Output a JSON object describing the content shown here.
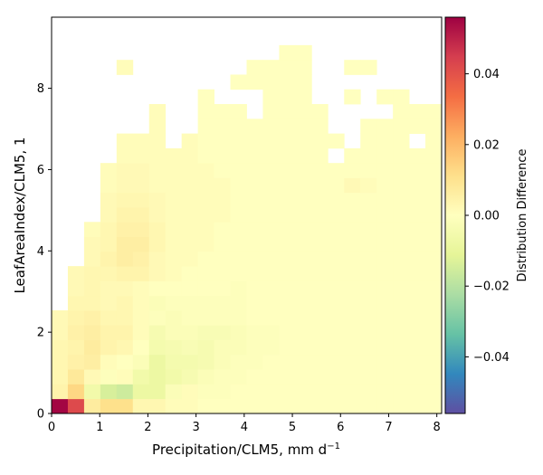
{
  "chart_data": {
    "type": "heatmap",
    "title": "",
    "xlabel": "Precipitation/CLM5,  mm d",
    "xlabel_superscript": "−1",
    "ylabel": "LeafAreaIndex/CLM5,  1",
    "xlim": [
      0,
      8.1
    ],
    "ylim": [
      0,
      9.75
    ],
    "x_bin_width": 0.3375,
    "y_bin_width": 0.3625,
    "n_x_bins": 24,
    "n_y_bins": 27,
    "x_ticks": [
      0,
      1,
      2,
      3,
      4,
      5,
      6,
      7,
      8
    ],
    "y_ticks": [
      0,
      2,
      4,
      6,
      8
    ],
    "colorbar": {
      "label": "Distribution Difference",
      "range": [
        -0.056,
        0.056
      ],
      "ticks": [
        -0.04,
        -0.02,
        0.0,
        0.02,
        0.04
      ],
      "tick_labels": [
        "−0.04",
        "−0.02",
        "0.00",
        "0.02",
        "0.04"
      ],
      "colormap": "Spectral_r",
      "colormap_colors": [
        "#5e4fa2",
        "#3288bd",
        "#66c2a5",
        "#abdda4",
        "#e6f598",
        "#ffffbf",
        "#fee08b",
        "#fdae61",
        "#f46d43",
        "#d53e4f",
        "#9e0142"
      ]
    },
    "top_edge_bins": [
      0,
      0,
      0,
      0,
      0,
      0,
      0,
      0,
      0,
      0,
      0,
      0,
      0,
      0,
      0,
      0,
      0,
      0,
      0,
      0,
      0,
      0,
      0,
      0
    ],
    "cell_rows": [
      {
        "y_bin": 0,
        "values": [
          0.055,
          0.042,
          0.007,
          0.011,
          0.011,
          0.003,
          0.003,
          0.001,
          0.001,
          0.0,
          0.0,
          0.0,
          0.0,
          0.0,
          0.0,
          0.0,
          0.0,
          0.0,
          0.0,
          0.0,
          0.0,
          0.0,
          0.0,
          0.0
        ]
      },
      {
        "y_bin": 1,
        "values": [
          0.004,
          0.013,
          -0.006,
          -0.014,
          -0.016,
          -0.008,
          -0.008,
          -0.002,
          0.001,
          -0.001,
          -0.001,
          0.0,
          0.0,
          0.0,
          0.0,
          0.0,
          0.0,
          0.0,
          0.0,
          0.0,
          0.0,
          0.0,
          0.0,
          0.0
        ]
      },
      {
        "y_bin": 2,
        "values": [
          0.003,
          0.008,
          0.002,
          -0.001,
          0.001,
          -0.006,
          -0.008,
          -0.006,
          -0.004,
          -0.002,
          -0.001,
          -0.001,
          0.0,
          0.0,
          0.0,
          0.0,
          0.0,
          0.0,
          0.0,
          0.0,
          0.0,
          0.0,
          0.0,
          0.0
        ]
      },
      {
        "y_bin": 3,
        "values": [
          0.003,
          0.005,
          0.006,
          0.001,
          0.0,
          -0.002,
          -0.008,
          -0.005,
          -0.005,
          -0.004,
          -0.002,
          -0.001,
          -0.001,
          0.0,
          0.0,
          0.0,
          0.0,
          0.0,
          0.0,
          0.0,
          0.0,
          0.0,
          0.0,
          0.0
        ]
      },
      {
        "y_bin": 4,
        "values": [
          0.003,
          0.004,
          0.007,
          0.004,
          0.003,
          0.0,
          -0.005,
          -0.004,
          -0.003,
          -0.004,
          -0.002,
          -0.002,
          -0.001,
          -0.001,
          0.0,
          0.0,
          0.0,
          0.0,
          0.0,
          0.0,
          0.0,
          0.0,
          0.0,
          0.0
        ]
      },
      {
        "y_bin": 5,
        "values": [
          0.002,
          0.005,
          0.006,
          0.004,
          0.004,
          0.001,
          -0.004,
          -0.002,
          -0.002,
          -0.003,
          -0.003,
          -0.002,
          -0.001,
          -0.001,
          0.0,
          0.0,
          0.0,
          0.0,
          0.0,
          0.0,
          0.0,
          0.0,
          0.0,
          0.0
        ]
      },
      {
        "y_bin": 6,
        "values": [
          0.002,
          0.004,
          0.005,
          0.003,
          0.003,
          0.001,
          -0.001,
          -0.002,
          -0.001,
          -0.001,
          -0.001,
          -0.001,
          0.0,
          0.0,
          0.0,
          0.0,
          0.0,
          0.0,
          0.0,
          0.0,
          0.0,
          0.0,
          0.0,
          0.0
        ]
      },
      {
        "y_bin": 7,
        "values": [
          null,
          0.003,
          0.003,
          0.002,
          0.003,
          0.001,
          -0.002,
          -0.001,
          -0.001,
          -0.001,
          -0.001,
          -0.001,
          0.0,
          0.0,
          0.0,
          0.0,
          0.0,
          0.0,
          0.0,
          0.0,
          0.0,
          0.0,
          0.0,
          0.0
        ]
      },
      {
        "y_bin": 8,
        "values": [
          null,
          0.002,
          0.003,
          0.002,
          0.002,
          0.001,
          0.0,
          0.0,
          0.0,
          0.0,
          0.0,
          -0.001,
          0.0,
          0.0,
          0.0,
          0.0,
          0.0,
          0.0,
          0.0,
          0.0,
          0.0,
          0.0,
          0.0,
          0.0
        ]
      },
      {
        "y_bin": 9,
        "values": [
          null,
          0.002,
          0.003,
          0.003,
          0.004,
          0.004,
          0.002,
          0.001,
          0.0,
          0.0,
          0.0,
          0.0,
          0.0,
          0.0,
          0.0,
          0.0,
          0.0,
          0.0,
          0.0,
          0.0,
          0.0,
          0.0,
          0.0,
          0.0
        ]
      },
      {
        "y_bin": 10,
        "values": [
          null,
          null,
          0.002,
          0.004,
          0.006,
          0.005,
          0.002,
          0.001,
          0.001,
          0.0,
          0.0,
          0.0,
          0.0,
          0.0,
          0.0,
          0.0,
          0.0,
          0.0,
          0.0,
          0.0,
          0.0,
          0.0,
          0.0,
          0.0
        ]
      },
      {
        "y_bin": 11,
        "values": [
          null,
          null,
          0.002,
          0.003,
          0.006,
          0.006,
          0.003,
          0.001,
          0.001,
          0.001,
          0.0,
          0.0,
          0.0,
          0.0,
          0.0,
          0.0,
          0.0,
          0.0,
          0.0,
          0.0,
          0.0,
          0.0,
          0.0,
          0.0
        ]
      },
      {
        "y_bin": 12,
        "values": [
          null,
          null,
          0.001,
          0.003,
          0.005,
          0.005,
          0.003,
          0.001,
          0.001,
          0.001,
          0.0,
          0.0,
          0.0,
          0.0,
          0.0,
          0.0,
          0.0,
          0.0,
          0.0,
          0.0,
          0.0,
          0.0,
          0.0,
          0.0
        ]
      },
      {
        "y_bin": 13,
        "values": [
          null,
          null,
          null,
          0.002,
          0.004,
          0.004,
          0.002,
          0.001,
          0.001,
          0.001,
          0.001,
          0.0,
          0.0,
          0.0,
          0.0,
          0.0,
          0.0,
          0.0,
          0.0,
          0.0,
          0.0,
          0.0,
          0.0,
          0.0
        ]
      },
      {
        "y_bin": 14,
        "values": [
          null,
          null,
          null,
          0.002,
          0.003,
          0.003,
          0.002,
          0.001,
          0.001,
          0.001,
          0.001,
          0.0,
          0.0,
          0.0,
          0.0,
          0.0,
          0.0,
          0.0,
          0.0,
          0.0,
          0.0,
          0.0,
          0.0,
          0.0
        ]
      },
      {
        "y_bin": 15,
        "values": [
          null,
          null,
          null,
          0.001,
          0.002,
          0.002,
          0.001,
          0.001,
          0.001,
          0.001,
          0.001,
          0.0,
          0.0,
          0.0,
          0.0,
          0.0,
          0.0,
          0.0,
          0.002,
          0.001,
          0.0,
          0.0,
          0.0,
          0.0
        ]
      },
      {
        "y_bin": 16,
        "values": [
          null,
          null,
          null,
          0.001,
          0.002,
          0.002,
          0.001,
          0.001,
          0.001,
          0.001,
          0.0,
          0.0,
          0.0,
          0.0,
          0.0,
          0.0,
          0.0,
          0.0,
          0.0,
          0.0,
          0.0,
          0.0,
          0.0,
          0.0
        ]
      },
      {
        "y_bin": 17,
        "values": [
          null,
          null,
          null,
          null,
          0.001,
          0.001,
          0.001,
          0.001,
          0.001,
          0.0,
          0.0,
          0.0,
          0.0,
          0.0,
          0.0,
          0.0,
          0.0,
          null,
          0.0,
          0.0,
          0.0,
          0.0,
          0.0,
          0.0
        ]
      },
      {
        "y_bin": 18,
        "values": [
          null,
          null,
          null,
          null,
          0.001,
          0.001,
          0.001,
          null,
          0.001,
          0.0,
          0.0,
          0.0,
          0.0,
          0.0,
          0.0,
          0.0,
          0.0,
          0.0,
          null,
          0.0,
          0.0,
          0.0,
          null,
          0.0
        ]
      },
      {
        "y_bin": 19,
        "values": [
          null,
          null,
          null,
          null,
          null,
          null,
          0.001,
          null,
          null,
          0.0,
          0.0,
          0.0,
          0.0,
          0.0,
          0.0,
          0.0,
          0.0,
          null,
          null,
          0.0,
          0.0,
          0.0,
          0.0,
          0.0
        ]
      },
      {
        "y_bin": 20,
        "values": [
          null,
          null,
          null,
          null,
          null,
          null,
          0.001,
          null,
          null,
          0.0,
          0.0,
          0.0,
          null,
          0.0,
          0.0,
          0.0,
          0.0,
          null,
          null,
          null,
          null,
          0.0,
          0.0,
          0.0
        ]
      },
      {
        "y_bin": 21,
        "values": [
          null,
          null,
          null,
          null,
          null,
          null,
          null,
          null,
          null,
          0.0,
          null,
          null,
          null,
          0.0,
          0.0,
          0.0,
          null,
          null,
          0.0,
          null,
          0.0,
          0.0,
          null,
          null
        ]
      },
      {
        "y_bin": 22,
        "values": [
          null,
          null,
          null,
          null,
          null,
          null,
          null,
          null,
          null,
          null,
          null,
          0.0,
          0.0,
          0.0,
          0.0,
          0.0,
          null,
          null,
          null,
          null,
          null,
          null,
          null,
          null
        ]
      },
      {
        "y_bin": 23,
        "values": [
          null,
          null,
          null,
          null,
          0.001,
          null,
          null,
          null,
          null,
          null,
          null,
          null,
          0.0,
          0.0,
          0.0,
          0.0,
          null,
          null,
          0.0,
          0.0,
          null,
          null,
          null,
          null
        ]
      },
      {
        "y_bin": 24,
        "values": [
          null,
          null,
          null,
          null,
          null,
          null,
          null,
          null,
          null,
          null,
          null,
          null,
          null,
          null,
          0.0,
          0.0,
          null,
          null,
          null,
          null,
          null,
          null,
          null,
          null
        ]
      },
      {
        "y_bin": 25,
        "values": [
          null,
          null,
          null,
          null,
          null,
          null,
          null,
          null,
          null,
          null,
          null,
          null,
          null,
          null,
          null,
          null,
          null,
          null,
          null,
          null,
          null,
          null,
          null,
          null
        ]
      },
      {
        "y_bin": 26,
        "values": [
          null,
          null,
          null,
          null,
          null,
          null,
          null,
          null,
          null,
          null,
          null,
          null,
          null,
          null,
          null,
          null,
          null,
          null,
          null,
          null,
          null,
          null,
          null,
          null
        ]
      }
    ]
  }
}
